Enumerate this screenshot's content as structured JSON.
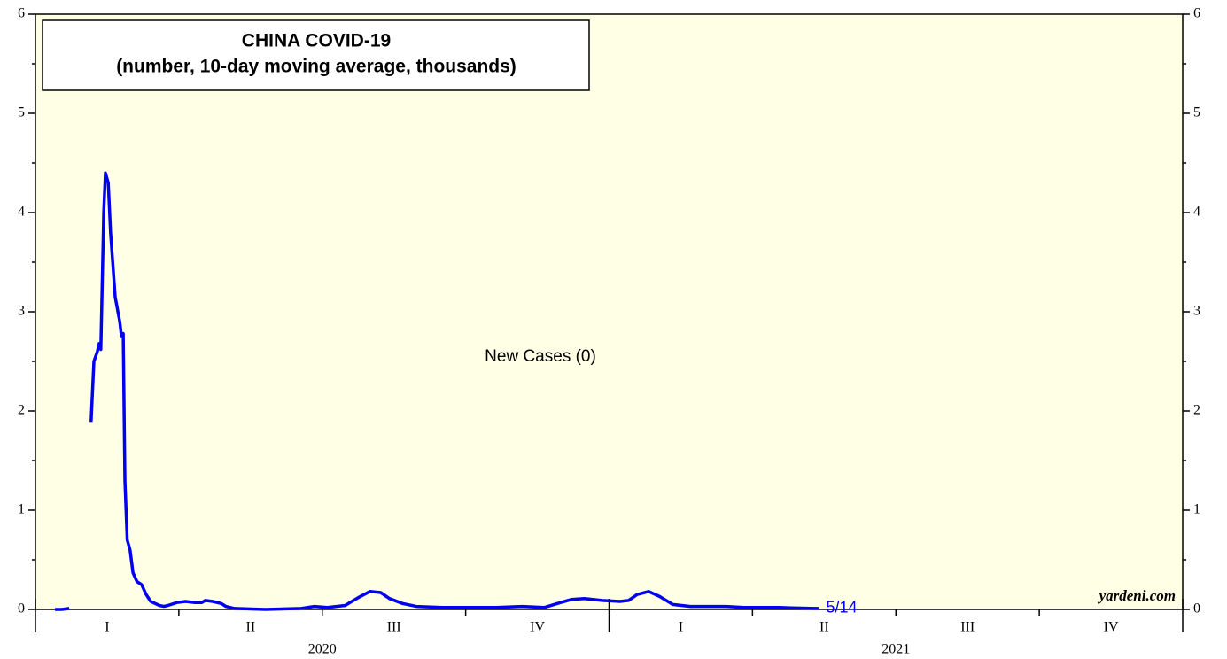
{
  "chart_data": {
    "type": "line",
    "title": "CHINA COVID-19",
    "subtitle": "(number, 10-day moving average, thousands)",
    "series_label": "New Cases (0)",
    "last_date_label": "5/14",
    "source": "yardeni.com",
    "x": [
      2020.034,
      2020.046,
      2020.059,
      2020.08,
      2020.097,
      2020.102,
      2020.108,
      2020.111,
      2020.114,
      2020.119,
      2020.122,
      2020.127,
      2020.131,
      2020.139,
      2020.147,
      2020.15,
      2020.153,
      2020.156,
      2020.16,
      2020.165,
      2020.17,
      2020.177,
      2020.185,
      2020.193,
      2020.201,
      2020.216,
      2020.224,
      2020.231,
      2020.247,
      2020.262,
      2020.278,
      2020.29,
      2020.296,
      2020.309,
      2020.324,
      2020.332,
      2020.347,
      2020.401,
      2020.463,
      2020.486,
      2020.509,
      2020.54,
      2020.563,
      2020.583,
      2020.602,
      2020.617,
      2020.64,
      2020.664,
      2020.71,
      2020.802,
      2020.849,
      2020.887,
      2020.91,
      2020.934,
      2020.957,
      2020.988,
      2021.019,
      2021.034,
      2021.049,
      2021.069,
      2021.088,
      2021.111,
      2021.142,
      2021.204,
      2021.235,
      2021.296,
      2021.358,
      2021.366
    ],
    "series": [
      {
        "name": "New Cases",
        "color": "#0000ee",
        "values": [
          0.0,
          0.0,
          0.01,
          null,
          1.89,
          2.5,
          2.6,
          2.68,
          2.62,
          4.0,
          4.4,
          4.3,
          3.8,
          3.15,
          2.9,
          2.75,
          2.78,
          1.3,
          0.7,
          0.6,
          0.37,
          0.28,
          0.25,
          0.15,
          0.08,
          0.04,
          0.03,
          0.04,
          0.07,
          0.08,
          0.07,
          0.07,
          0.09,
          0.08,
          0.06,
          0.03,
          0.01,
          0.0,
          0.01,
          0.03,
          0.02,
          0.04,
          0.12,
          0.18,
          0.17,
          0.11,
          0.06,
          0.03,
          0.02,
          0.02,
          0.03,
          0.02,
          0.06,
          0.1,
          0.11,
          0.09,
          0.08,
          0.09,
          0.15,
          0.18,
          0.13,
          0.05,
          0.03,
          0.03,
          0.02,
          0.02,
          0.01,
          0.01
        ]
      }
    ],
    "xlim": [
      2020,
      2022
    ],
    "xticks": [
      {
        "value": 2020.125,
        "label": "I"
      },
      {
        "value": 2020.375,
        "label": "II"
      },
      {
        "value": 2020.625,
        "label": "III"
      },
      {
        "value": 2020.875,
        "label": "IV"
      },
      {
        "value": 2021.125,
        "label": "I"
      },
      {
        "value": 2021.375,
        "label": "II"
      },
      {
        "value": 2021.625,
        "label": "III"
      },
      {
        "value": 2021.875,
        "label": "IV"
      }
    ],
    "xticks_minor": [
      2020.25,
      2020.5,
      2020.75,
      2021.25,
      2021.5,
      2021.75
    ],
    "year_ticks": [
      2020,
      2021,
      2022
    ],
    "year_labels": [
      {
        "value": 2020.5,
        "label": "2020"
      },
      {
        "value": 2021.5,
        "label": "2021"
      }
    ],
    "ylim": [
      0,
      6
    ],
    "yticks": [
      0,
      1,
      2,
      3,
      4,
      5,
      6
    ],
    "yticks_minor": [
      0.5,
      1.5,
      2.5,
      3.5,
      4.5,
      5.5
    ]
  }
}
